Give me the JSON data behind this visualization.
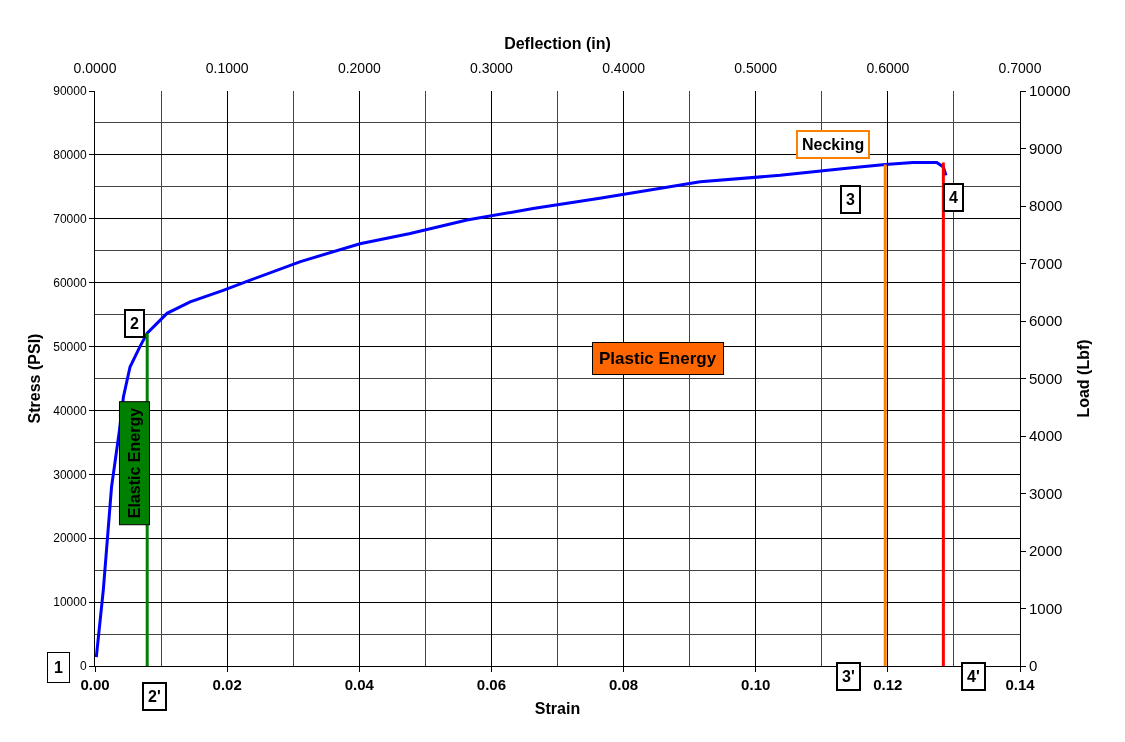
{
  "chart_data": {
    "type": "line",
    "xlabel": "Strain",
    "ylabel": "Stress (PSI)",
    "x2label": "Deflection (in)",
    "y2label": "Load (Lbf)",
    "series": [
      {
        "color": "#0000ff",
        "x": [
          0.0002,
          0.00126,
          0.0025,
          0.0037,
          0.0043,
          0.0053,
          0.0068,
          0.0079,
          0.0109,
          0.0144,
          0.0194,
          0.0235,
          0.0311,
          0.0401,
          0.0477,
          0.0563,
          0.0663,
          0.0764,
          0.084,
          0.0916,
          0.1037,
          0.1138,
          0.1196,
          0.1238,
          0.1274,
          0.1284,
          0.1288
        ],
        "values": [
          1400,
          11900,
          28000,
          36900,
          42100,
          46800,
          50000,
          52100,
          55200,
          57000,
          58800,
          60400,
          63300,
          66100,
          67700,
          69800,
          71600,
          73200,
          74500,
          75800,
          76800,
          77900,
          78500,
          78800,
          78800,
          78100,
          76800
        ]
      },
      {
        "color": "#008000",
        "x": [
          0.0079,
          0.0079
        ],
        "values": [
          0,
          52100
        ]
      },
      {
        "color": "#ff8000",
        "x": [
          0.1196,
          0.1196
        ],
        "values": [
          0,
          78500
        ]
      },
      {
        "color": "#ff0000",
        "x": [
          0.1284,
          0.1284
        ],
        "values": [
          0,
          78800
        ]
      }
    ],
    "annotations": [
      "1",
      {
        "text": "2",
        "x": 0.0079,
        "y": 52100
      },
      {
        "text": "2'",
        "x": 0.0079,
        "y": 0
      },
      {
        "text": "3",
        "x": 0.1196,
        "y": 78500
      },
      {
        "text": "3'",
        "x": 0.1196,
        "y": 0
      },
      {
        "text": "4",
        "x": 0.1284,
        "y": 78800
      },
      {
        "text": "4'",
        "x": 0.1284,
        "y": 0
      },
      {
        "text": "Necking",
        "x": 0.1196,
        "y": 78500
      },
      "Plastic Energy",
      "Elastic Energy"
    ],
    "xlim": [
      0,
      0.14
    ],
    "xticks": [
      {
        "value": 0,
        "label": "0.00"
      },
      {
        "value": 0.02,
        "label": "0.02"
      },
      {
        "value": 0.04,
        "label": "0.04"
      },
      {
        "value": 0.06,
        "label": "0.06"
      },
      {
        "value": 0.08,
        "label": "0.08"
      },
      {
        "value": 0.1,
        "label": "0.10"
      },
      {
        "value": 0.12,
        "label": "0.12"
      },
      {
        "value": 0.14,
        "label": "0.14"
      }
    ],
    "ylim": [
      0,
      90000
    ],
    "yticks": [
      0,
      10000,
      20000,
      30000,
      40000,
      50000,
      60000,
      70000,
      80000,
      90000
    ],
    "x2lim": [
      0,
      0.7
    ],
    "x2ticks": [
      {
        "value": 0,
        "label": "0.0000"
      },
      {
        "value": 0.1,
        "label": "0.1000"
      },
      {
        "value": 0.2,
        "label": "0.2000"
      },
      {
        "value": 0.3,
        "label": "0.3000"
      },
      {
        "value": 0.4,
        "label": "0.4000"
      },
      {
        "value": 0.5,
        "label": "0.5000"
      },
      {
        "value": 0.6,
        "label": "0.6000"
      },
      {
        "value": 0.7,
        "label": "0.7000"
      }
    ],
    "y2lim": [
      0,
      10000
    ],
    "y2ticks": [
      0,
      1000,
      2000,
      3000,
      4000,
      5000,
      6000,
      7000,
      8000,
      9000,
      10000
    ],
    "grid": true,
    "marker": "none",
    "line_style": "solid"
  }
}
